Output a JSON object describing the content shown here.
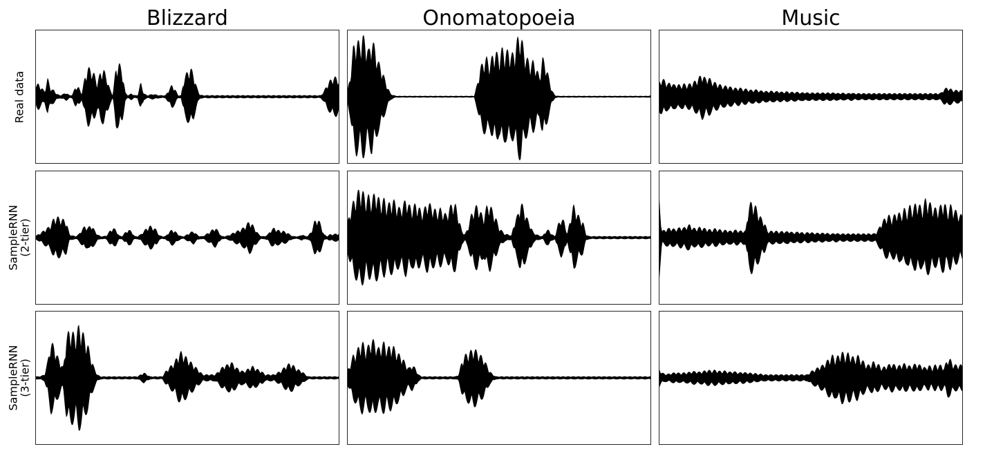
{
  "chart_data": {
    "type": "area",
    "grid": false,
    "column_titles": [
      "Blizzard",
      "Onomatopoeia",
      "Music"
    ],
    "row_labels": [
      [
        "Real data"
      ],
      [
        "SampleRNN",
        "(2-tier)"
      ],
      [
        "SampleRNN",
        "(3-tier)"
      ]
    ],
    "ylim": [
      -1,
      1
    ],
    "xlim": [
      0,
      1
    ],
    "color": "#000000",
    "panels": [
      {
        "row": "Real data",
        "column": "Blizzard",
        "envelope": [
          0.16,
          0.2,
          0.14,
          0.08,
          0.28,
          0.12,
          0.1,
          0.04,
          0.02,
          0.04,
          0.06,
          0.02,
          0.03,
          0.16,
          0.14,
          0.04,
          0.3,
          0.45,
          0.42,
          0.35,
          0.2,
          0.38,
          0.42,
          0.3,
          0.12,
          0.02,
          0.45,
          0.52,
          0.4,
          0.06,
          0.02,
          0.05,
          0.02,
          0.02,
          0.22,
          0.05,
          0.02,
          0.03,
          0.04,
          0.03,
          0.02,
          0.02,
          0.02,
          0.1,
          0.18,
          0.12,
          0.02,
          0.02,
          0.3,
          0.38,
          0.45,
          0.35,
          0.15,
          0.03,
          0.02,
          0.02,
          0.02,
          0.02,
          0.02,
          0.02,
          0.02,
          0.02,
          0.02,
          0.02,
          0.02,
          0.02,
          0.02,
          0.02,
          0.02,
          0.02,
          0.02,
          0.02,
          0.02,
          0.02,
          0.02,
          0.02,
          0.02,
          0.02,
          0.02,
          0.02,
          0.02,
          0.02,
          0.02,
          0.02,
          0.02,
          0.02,
          0.02,
          0.02,
          0.02,
          0.02,
          0.02,
          0.02,
          0.02,
          0.08,
          0.18,
          0.25,
          0.3,
          0.3,
          0.25
        ]
      },
      {
        "row": "Real data",
        "column": "Onomatopoeia",
        "envelope": [
          0.05,
          0.3,
          0.75,
          0.9,
          0.82,
          0.95,
          0.85,
          0.7,
          0.9,
          0.75,
          0.55,
          0.45,
          0.3,
          0.15,
          0.05,
          0.02,
          0.01,
          0.01,
          0.01,
          0.01,
          0.01,
          0.01,
          0.01,
          0.01,
          0.01,
          0.01,
          0.01,
          0.01,
          0.01,
          0.01,
          0.01,
          0.01,
          0.01,
          0.01,
          0.01,
          0.01,
          0.01,
          0.01,
          0.01,
          0.01,
          0.01,
          0.01,
          0.2,
          0.45,
          0.55,
          0.6,
          0.5,
          0.65,
          0.7,
          0.6,
          0.75,
          0.68,
          0.72,
          0.65,
          0.7,
          0.9,
          0.98,
          0.7,
          0.6,
          0.5,
          0.55,
          0.45,
          0.3,
          0.6,
          0.5,
          0.3,
          0.1,
          0.02,
          0.01,
          0.01,
          0.01,
          0.01,
          0.01,
          0.01,
          0.01,
          0.01,
          0.01,
          0.01,
          0.01,
          0.01,
          0.01,
          0.01,
          0.01,
          0.01,
          0.01,
          0.01,
          0.01,
          0.01,
          0.01,
          0.01,
          0.01,
          0.01,
          0.01,
          0.01,
          0.01,
          0.01,
          0.01,
          0.01,
          0.02
        ]
      },
      {
        "row": "Real data",
        "column": "Music",
        "envelope": [
          0.22,
          0.28,
          0.25,
          0.2,
          0.22,
          0.18,
          0.2,
          0.17,
          0.2,
          0.18,
          0.2,
          0.22,
          0.25,
          0.3,
          0.35,
          0.28,
          0.3,
          0.25,
          0.22,
          0.2,
          0.18,
          0.16,
          0.17,
          0.15,
          0.14,
          0.13,
          0.14,
          0.12,
          0.12,
          0.11,
          0.1,
          0.11,
          0.1,
          0.09,
          0.09,
          0.08,
          0.09,
          0.08,
          0.08,
          0.08,
          0.07,
          0.08,
          0.07,
          0.07,
          0.07,
          0.07,
          0.06,
          0.07,
          0.06,
          0.06,
          0.06,
          0.06,
          0.06,
          0.06,
          0.06,
          0.06,
          0.06,
          0.06,
          0.05,
          0.06,
          0.05,
          0.05,
          0.06,
          0.05,
          0.05,
          0.05,
          0.05,
          0.05,
          0.05,
          0.05,
          0.05,
          0.05,
          0.05,
          0.05,
          0.05,
          0.05,
          0.05,
          0.05,
          0.05,
          0.05,
          0.05,
          0.05,
          0.05,
          0.05,
          0.05,
          0.05,
          0.05,
          0.05,
          0.05,
          0.05,
          0.05,
          0.06,
          0.12,
          0.14,
          0.12,
          0.1,
          0.1,
          0.1,
          0.09
        ]
      },
      {
        "row": "SampleRNN (2-tier)",
        "column": "Blizzard",
        "envelope": [
          0.02,
          0.05,
          0.08,
          0.12,
          0.15,
          0.2,
          0.3,
          0.32,
          0.3,
          0.28,
          0.25,
          0.05,
          0.03,
          0.02,
          0.05,
          0.12,
          0.18,
          0.15,
          0.2,
          0.12,
          0.05,
          0.02,
          0.02,
          0.03,
          0.1,
          0.15,
          0.12,
          0.03,
          0.02,
          0.08,
          0.12,
          0.1,
          0.02,
          0.02,
          0.05,
          0.1,
          0.15,
          0.18,
          0.16,
          0.12,
          0.03,
          0.02,
          0.02,
          0.08,
          0.12,
          0.1,
          0.05,
          0.02,
          0.02,
          0.05,
          0.08,
          0.1,
          0.05,
          0.02,
          0.02,
          0.05,
          0.08,
          0.12,
          0.15,
          0.1,
          0.02,
          0.02,
          0.03,
          0.05,
          0.08,
          0.1,
          0.12,
          0.15,
          0.2,
          0.25,
          0.2,
          0.12,
          0.05,
          0.02,
          0.02,
          0.05,
          0.12,
          0.15,
          0.12,
          0.1,
          0.1,
          0.08,
          0.05,
          0.02,
          0.02,
          0.02,
          0.05,
          0.02,
          0.03,
          0.1,
          0.25,
          0.3,
          0.2,
          0.05,
          0.02,
          0.05,
          0.05,
          0.06,
          0.06
        ]
      },
      {
        "row": "SampleRNN (2-tier)",
        "column": "Onomatopoeia",
        "envelope": [
          0.2,
          0.4,
          0.55,
          0.65,
          0.75,
          0.72,
          0.6,
          0.65,
          0.58,
          0.7,
          0.62,
          0.55,
          0.6,
          0.5,
          0.55,
          0.58,
          0.5,
          0.45,
          0.5,
          0.6,
          0.5,
          0.45,
          0.52,
          0.48,
          0.4,
          0.45,
          0.55,
          0.5,
          0.45,
          0.4,
          0.45,
          0.4,
          0.35,
          0.45,
          0.55,
          0.5,
          0.3,
          0.1,
          0.05,
          0.15,
          0.35,
          0.45,
          0.5,
          0.4,
          0.3,
          0.48,
          0.52,
          0.4,
          0.3,
          0.15,
          0.1,
          0.05,
          0.05,
          0.03,
          0.25,
          0.35,
          0.55,
          0.45,
          0.3,
          0.2,
          0.08,
          0.05,
          0.03,
          0.02,
          0.1,
          0.12,
          0.05,
          0.02,
          0.2,
          0.3,
          0.25,
          0.05,
          0.3,
          0.5,
          0.4,
          0.3,
          0.25,
          0.05,
          0.02,
          0.02,
          0.02,
          0.02,
          0.02,
          0.02,
          0.02,
          0.02,
          0.02,
          0.02,
          0.02,
          0.02,
          0.02,
          0.02,
          0.02,
          0.02,
          0.02,
          0.02,
          0.02,
          0.02,
          0.02
        ]
      },
      {
        "row": "SampleRNN (2-tier)",
        "column": "Music",
        "envelope": [
          0.7,
          0.1,
          0.12,
          0.14,
          0.15,
          0.13,
          0.14,
          0.16,
          0.15,
          0.18,
          0.2,
          0.15,
          0.14,
          0.16,
          0.15,
          0.14,
          0.13,
          0.12,
          0.14,
          0.13,
          0.12,
          0.11,
          0.12,
          0.1,
          0.11,
          0.12,
          0.1,
          0.11,
          0.1,
          0.5,
          0.55,
          0.5,
          0.4,
          0.3,
          0.25,
          0.1,
          0.1,
          0.1,
          0.1,
          0.09,
          0.1,
          0.09,
          0.1,
          0.08,
          0.08,
          0.09,
          0.08,
          0.07,
          0.08,
          0.08,
          0.07,
          0.07,
          0.07,
          0.07,
          0.07,
          0.06,
          0.06,
          0.07,
          0.06,
          0.06,
          0.06,
          0.06,
          0.06,
          0.06,
          0.06,
          0.06,
          0.06,
          0.06,
          0.06,
          0.06,
          0.07,
          0.15,
          0.25,
          0.3,
          0.35,
          0.3,
          0.35,
          0.4,
          0.35,
          0.45,
          0.4,
          0.5,
          0.45,
          0.55,
          0.5,
          0.45,
          0.6,
          0.55,
          0.5,
          0.45,
          0.45,
          0.5,
          0.55,
          0.4,
          0.5,
          0.45,
          0.4,
          0.35,
          0.35
        ]
      },
      {
        "row": "SampleRNN (3-tier)",
        "column": "Blizzard",
        "envelope": [
          0.02,
          0.02,
          0.03,
          0.05,
          0.25,
          0.55,
          0.5,
          0.35,
          0.25,
          0.15,
          0.6,
          0.75,
          0.7,
          0.65,
          0.8,
          0.75,
          0.6,
          0.5,
          0.3,
          0.15,
          0.05,
          0.02,
          0.02,
          0.02,
          0.02,
          0.02,
          0.02,
          0.02,
          0.02,
          0.02,
          0.02,
          0.02,
          0.02,
          0.02,
          0.05,
          0.08,
          0.05,
          0.02,
          0.02,
          0.02,
          0.02,
          0.02,
          0.1,
          0.15,
          0.2,
          0.25,
          0.35,
          0.4,
          0.35,
          0.3,
          0.25,
          0.2,
          0.15,
          0.1,
          0.05,
          0.05,
          0.05,
          0.05,
          0.05,
          0.1,
          0.15,
          0.2,
          0.2,
          0.25,
          0.2,
          0.15,
          0.12,
          0.1,
          0.12,
          0.15,
          0.18,
          0.15,
          0.12,
          0.1,
          0.05,
          0.05,
          0.05,
          0.05,
          0.08,
          0.1,
          0.15,
          0.2,
          0.22,
          0.2,
          0.15,
          0.12,
          0.1,
          0.05,
          0.02,
          0.02,
          0.02,
          0.02,
          0.02,
          0.02,
          0.02,
          0.02,
          0.02,
          0.02,
          0.02
        ]
      },
      {
        "row": "SampleRNN (3-tier)",
        "column": "Onomatopoeia",
        "envelope": [
          0.1,
          0.2,
          0.35,
          0.4,
          0.5,
          0.55,
          0.45,
          0.5,
          0.6,
          0.55,
          0.45,
          0.5,
          0.55,
          0.45,
          0.5,
          0.48,
          0.4,
          0.35,
          0.3,
          0.2,
          0.15,
          0.2,
          0.15,
          0.05,
          0.02,
          0.02,
          0.02,
          0.02,
          0.02,
          0.02,
          0.02,
          0.02,
          0.02,
          0.02,
          0.02,
          0.02,
          0.05,
          0.25,
          0.35,
          0.38,
          0.42,
          0.45,
          0.4,
          0.35,
          0.3,
          0.2,
          0.1,
          0.05,
          0.02,
          0.02,
          0.02,
          0.02,
          0.02,
          0.02,
          0.02,
          0.02,
          0.02,
          0.02,
          0.02,
          0.02,
          0.02,
          0.02,
          0.02,
          0.02,
          0.02,
          0.02,
          0.02,
          0.02,
          0.02,
          0.02,
          0.02,
          0.02,
          0.02,
          0.02,
          0.02,
          0.02,
          0.02,
          0.02,
          0.02,
          0.02,
          0.02,
          0.02,
          0.02,
          0.02,
          0.02,
          0.02,
          0.02,
          0.02,
          0.02,
          0.02,
          0.02,
          0.02,
          0.02,
          0.02,
          0.02,
          0.02,
          0.02,
          0.02,
          0.02
        ]
      },
      {
        "row": "SampleRNN (3-tier)",
        "column": "Music",
        "envelope": [
          0.15,
          0.08,
          0.06,
          0.06,
          0.07,
          0.08,
          0.08,
          0.07,
          0.08,
          0.08,
          0.09,
          0.1,
          0.1,
          0.09,
          0.1,
          0.11,
          0.12,
          0.11,
          0.12,
          0.11,
          0.1,
          0.11,
          0.1,
          0.09,
          0.1,
          0.09,
          0.08,
          0.09,
          0.08,
          0.08,
          0.07,
          0.07,
          0.06,
          0.06,
          0.05,
          0.05,
          0.05,
          0.05,
          0.05,
          0.05,
          0.05,
          0.05,
          0.05,
          0.05,
          0.05,
          0.05,
          0.05,
          0.05,
          0.05,
          0.1,
          0.12,
          0.15,
          0.18,
          0.2,
          0.25,
          0.3,
          0.35,
          0.3,
          0.35,
          0.4,
          0.35,
          0.38,
          0.35,
          0.3,
          0.35,
          0.3,
          0.25,
          0.2,
          0.2,
          0.25,
          0.22,
          0.2,
          0.15,
          0.18,
          0.2,
          0.22,
          0.2,
          0.18,
          0.2,
          0.22,
          0.2,
          0.18,
          0.2,
          0.22,
          0.2,
          0.18,
          0.15,
          0.2,
          0.15,
          0.2,
          0.18,
          0.2,
          0.15,
          0.3,
          0.28,
          0.2,
          0.2,
          0.2,
          0.2
        ]
      }
    ]
  }
}
